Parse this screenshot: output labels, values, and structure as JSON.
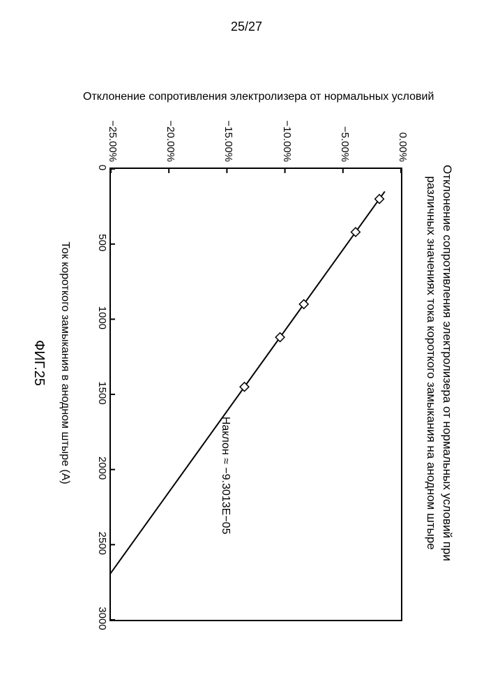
{
  "page_number": "25/27",
  "figure_caption": "ФИГ.25",
  "chart": {
    "type": "line-scatter",
    "title_line1": "Отклонение сопротивления электролизера от нормальных условий при",
    "title_line2": "различных значениях тока короткого замыкания на анодном штыре",
    "xlabel": "Ток короткого замыкания в анодном штыре (А)",
    "ylabel": "Отклонение сопротивления электролизера от нормальных условий",
    "slope_text": "Наклон ≈ −9.3013E−05",
    "xlim": [
      0,
      3000
    ],
    "ylim": [
      -25,
      0
    ],
    "xticks": [
      0,
      500,
      1000,
      1500,
      2000,
      2500,
      3000
    ],
    "ytick_values": [
      0,
      -5,
      -10,
      -15,
      -20,
      -25
    ],
    "ytick_labels": [
      "0.00%",
      "−5.00%",
      "−10.00%",
      "−15.00%",
      "−20.00%",
      "−25.00%"
    ],
    "data_x": [
      200,
      420,
      900,
      1120,
      1450,
      2870
    ],
    "data_y": [
      -0.0186,
      -0.0391,
      -0.0837,
      -0.1042,
      -0.1349,
      -0.2669
    ],
    "line_color": "#000000",
    "marker_style": "diamond",
    "marker_size": 9,
    "marker_stroke": "#000000",
    "marker_fill": "#ffffff",
    "line_width": 2,
    "background_color": "#ffffff",
    "border_color": "#000000",
    "title_fontsize": 17,
    "label_fontsize": 16,
    "tick_fontsize": 15
  }
}
